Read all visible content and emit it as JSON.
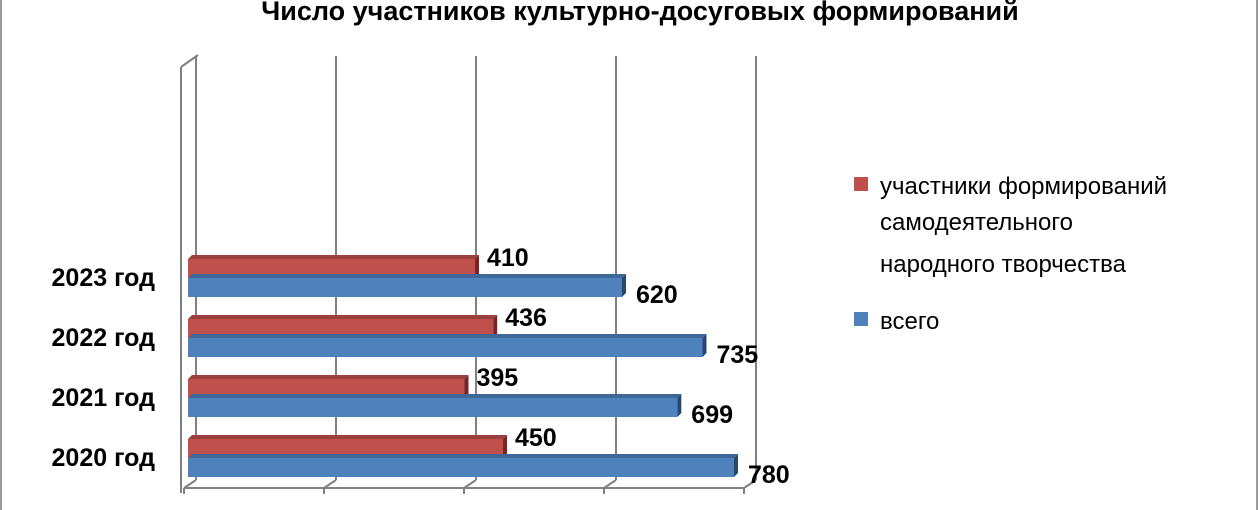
{
  "chart_data": {
    "type": "bar",
    "orientation": "horizontal",
    "title": "Число участников культурно-досуговых формирований",
    "categories": [
      "2020 год",
      "2021 год",
      "2022 год",
      "2023 год"
    ],
    "series": [
      {
        "name_lines": [
          "участники формирований",
          "самодеятельного",
          "народного творчества"
        ],
        "values": [
          450,
          395,
          436,
          410
        ],
        "color": "#C0504D"
      },
      {
        "name": "всего",
        "values": [
          780,
          699,
          735,
          620
        ],
        "color": "#4F81BD"
      }
    ],
    "xlim": [
      0,
      1000
    ],
    "grid": true,
    "legend_position": "right"
  }
}
